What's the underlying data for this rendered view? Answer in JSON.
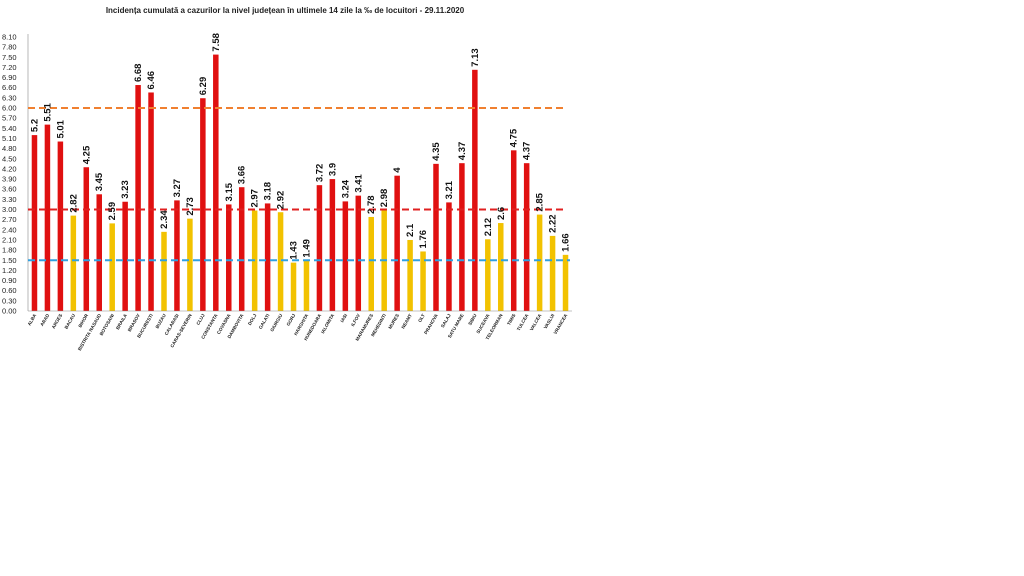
{
  "chart_data": {
    "type": "bar",
    "title": "Incidența cumulată a cazurilor la nivel județean în ultimele 14 zile la ‰ de locuitori - 29.11.2020",
    "xlabel": "",
    "ylabel": "",
    "ylim": [
      0,
      8.1
    ],
    "yticks": [
      "0.00",
      "0.30",
      "0.60",
      "0.90",
      "1.20",
      "1.50",
      "1.80",
      "2.10",
      "2.40",
      "2.70",
      "3.00",
      "3.30",
      "3.60",
      "3.90",
      "4.20",
      "4.50",
      "4.80",
      "5.10",
      "5.40",
      "5.70",
      "6.00",
      "6.30",
      "6.60",
      "6.90",
      "7.20",
      "7.50",
      "7.80",
      "8.10"
    ],
    "grid": false,
    "legend": "none",
    "categories": [
      "ALBA",
      "ARAD",
      "ARGES",
      "BACAU",
      "BIHOR",
      "BISTRITA NASAUD",
      "BOTOSANI",
      "BRAILA",
      "BRASOV",
      "BUCURESTI",
      "BUZAU",
      "CALARASI",
      "CARAS-SEVERIN",
      "CLUJ",
      "CONSTANTA",
      "COVASNA",
      "DAMBOVITA",
      "DOLJ",
      "GALATI",
      "GIURGIU",
      "GORJ",
      "HARGHITA",
      "HUNEDOARA",
      "IALOMITA",
      "IASI",
      "ILFOV",
      "MARAMURES",
      "MEHEDINTI",
      "MURES",
      "NEAMT",
      "OLT",
      "PRAHOVA",
      "SALAJ",
      "SATU MARE",
      "SIBIU",
      "SUCEAVA",
      "TELEORMAN",
      "TIMIS",
      "TULCEA",
      "VALCEA",
      "VASLUI",
      "VRANCEA"
    ],
    "values": [
      5.2,
      5.51,
      5.01,
      2.82,
      4.25,
      3.45,
      2.59,
      3.23,
      6.68,
      6.46,
      2.34,
      3.27,
      2.73,
      6.29,
      7.58,
      3.15,
      3.66,
      2.97,
      3.18,
      2.92,
      1.43,
      1.49,
      3.72,
      3.9,
      3.24,
      3.41,
      2.78,
      2.98,
      4,
      2.1,
      1.76,
      4.35,
      3.21,
      4.37,
      7.13,
      2.12,
      2.6,
      4.75,
      4.37,
      2.85,
      2.22,
      1.66
    ],
    "value_labels": [
      "5.2",
      "5.51",
      "5.01",
      "2.82",
      "4.25",
      "3.45",
      "2.59",
      "3.23",
      "6.68",
      "6.46",
      "2.34",
      "3.27",
      "2.73",
      "6.29",
      "7.58",
      "3.15",
      "3.66",
      "2.97",
      "3.18",
      "2.92",
      "1.43",
      "1.49",
      "3.72",
      "3.9",
      "3.24",
      "3.41",
      "2.78",
      "2.98",
      "4",
      "2.1",
      "1.76",
      "4.35",
      "3.21",
      "4.37",
      "7.13",
      "2.12",
      "2.6",
      "4.75",
      "4.37",
      "2.85",
      "2.22",
      "1.66"
    ],
    "thresholds": [
      {
        "value": 6.0,
        "color": "#f08030"
      },
      {
        "value": 3.0,
        "color": "#e02020"
      },
      {
        "value": 1.5,
        "color": "#30a0e0"
      }
    ],
    "colors": {
      "above": "#e01010",
      "below": "#f2c200"
    }
  }
}
